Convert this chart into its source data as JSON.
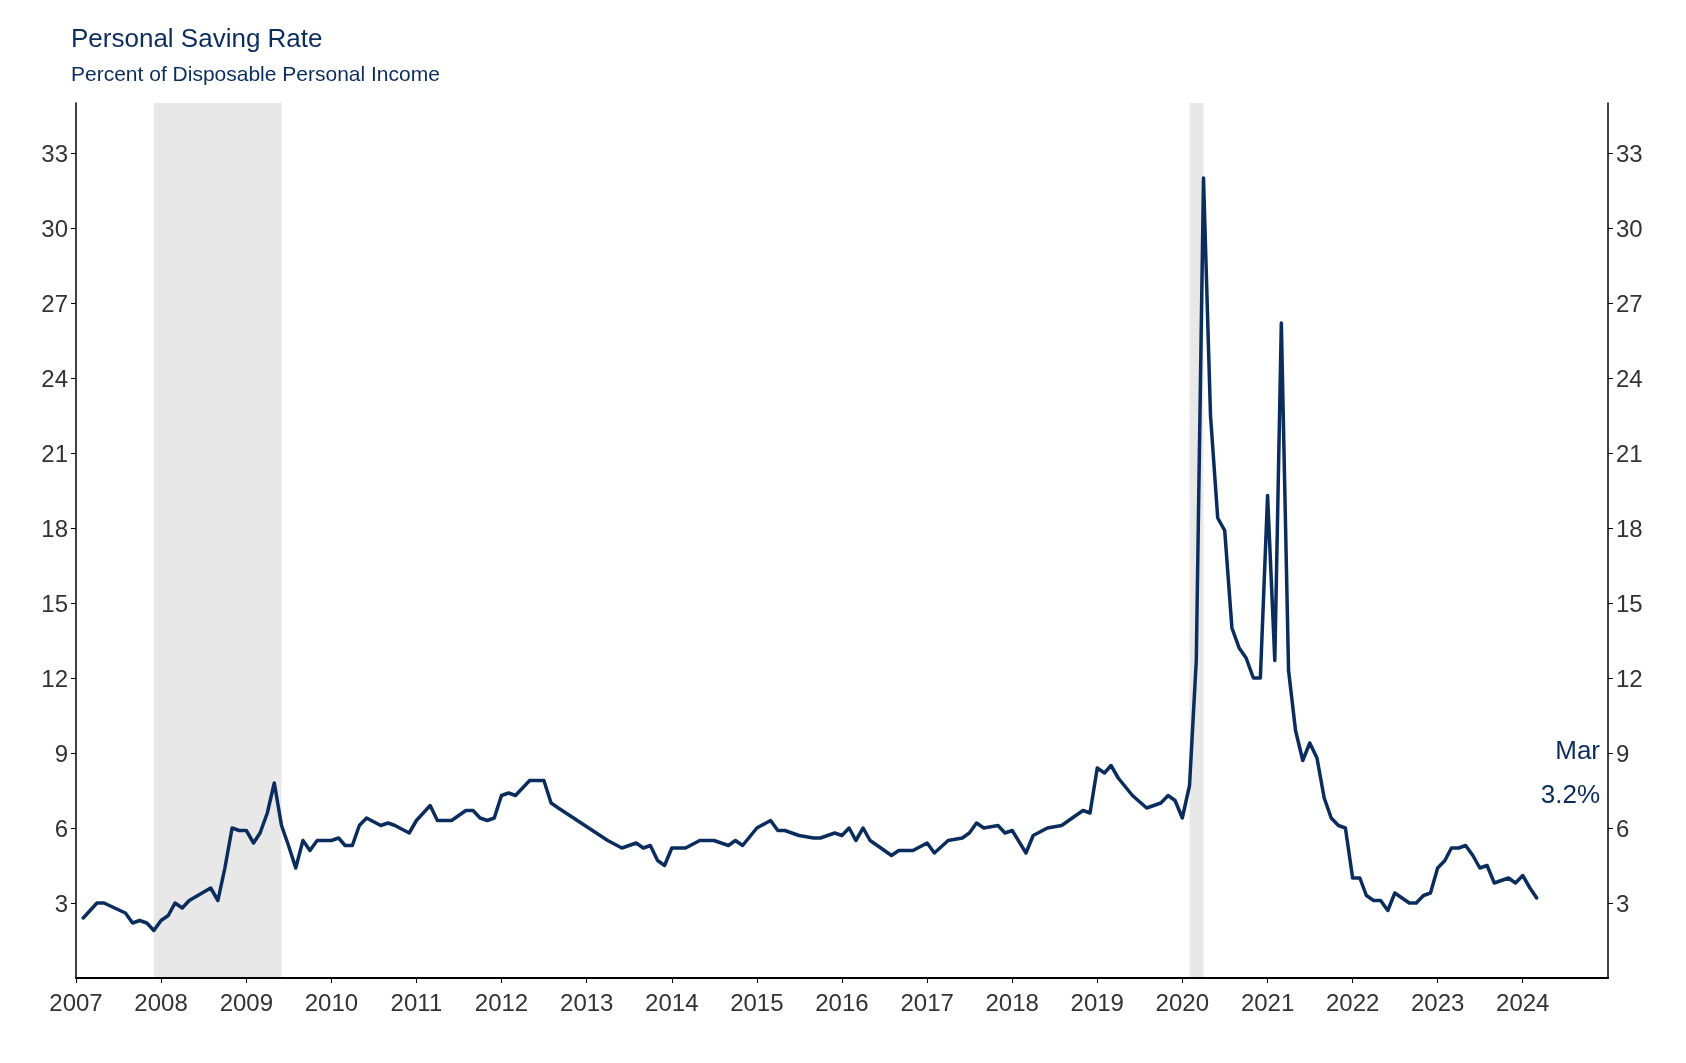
{
  "chart_data": {
    "type": "line",
    "title": "Personal Saving Rate",
    "subtitle": "Percent of Disposable Personal Income",
    "annotations": [
      "Mar",
      "3.2%"
    ],
    "x": [
      "2007-02",
      "2007-04",
      "2007-05",
      "2007-08",
      "2007-09",
      "2007-10",
      "2007-11",
      "2007-12",
      "2008-01",
      "2008-02",
      "2008-03",
      "2008-04",
      "2008-05",
      "2008-08",
      "2008-09",
      "2008-10",
      "2008-11",
      "2008-12",
      "2009-01",
      "2009-02",
      "2009-03",
      "2009-04",
      "2009-05",
      "2009-06",
      "2009-07",
      "2009-08",
      "2009-09",
      "2009-10",
      "2009-11",
      "2010-01",
      "2010-02",
      "2010-03",
      "2010-04",
      "2010-05",
      "2010-06",
      "2010-08",
      "2010-09",
      "2010-10",
      "2010-12",
      "2011-01",
      "2011-03",
      "2011-04",
      "2011-06",
      "2011-08",
      "2011-09",
      "2011-10",
      "2011-11",
      "2011-12",
      "2012-01",
      "2012-02",
      "2012-03",
      "2012-05",
      "2012-07",
      "2012-08",
      "2012-09",
      "2013-04",
      "2013-06",
      "2013-08",
      "2013-09",
      "2013-10",
      "2013-11",
      "2013-12",
      "2014-01",
      "2014-03",
      "2014-05",
      "2014-07",
      "2014-09",
      "2014-10",
      "2014-11",
      "2015-01",
      "2015-03",
      "2015-04",
      "2015-05",
      "2015-07",
      "2015-09",
      "2015-10",
      "2015-12",
      "2016-01",
      "2016-02",
      "2016-03",
      "2016-04",
      "2016-05",
      "2016-06",
      "2016-08",
      "2016-09",
      "2016-11",
      "2017-01",
      "2017-02",
      "2017-04",
      "2017-06",
      "2017-07",
      "2017-08",
      "2017-09",
      "2017-11",
      "2017-12",
      "2018-01",
      "2018-03",
      "2018-04",
      "2018-06",
      "2018-08",
      "2018-10",
      "2018-11",
      "2018-12",
      "2019-01",
      "2019-02",
      "2019-03",
      "2019-04",
      "2019-06",
      "2019-08",
      "2019-10",
      "2019-11",
      "2019-12",
      "2020-01",
      "2020-02",
      "2020-03",
      "2020-04",
      "2020-05",
      "2020-06",
      "2020-07",
      "2020-08",
      "2020-09",
      "2020-10",
      "2020-11",
      "2020-12",
      "2021-01",
      "2021-02",
      "2021-03",
      "2021-04",
      "2021-05",
      "2021-06",
      "2021-07",
      "2021-08",
      "2021-09",
      "2021-10",
      "2021-11",
      "2021-12",
      "2022-01",
      "2022-02",
      "2022-03",
      "2022-04",
      "2022-05",
      "2022-06",
      "2022-07",
      "2022-08",
      "2022-09",
      "2022-10",
      "2022-11",
      "2022-12",
      "2023-01",
      "2023-02",
      "2023-03",
      "2023-04",
      "2023-05",
      "2023-06",
      "2023-07",
      "2023-08",
      "2023-09",
      "2023-10",
      "2023-11",
      "2023-12",
      "2024-01",
      "2024-02",
      "2024-03"
    ],
    "series": [
      {
        "color": "#0b2d5e",
        "values": [
          2.4,
          3.0,
          3.0,
          2.6,
          2.2,
          2.3,
          2.2,
          1.9,
          2.3,
          2.5,
          3.0,
          2.8,
          3.1,
          3.6,
          3.1,
          4.4,
          6.0,
          5.9,
          5.9,
          5.4,
          5.8,
          6.6,
          7.8,
          6.1,
          5.3,
          4.4,
          5.5,
          5.1,
          5.5,
          5.5,
          5.6,
          5.3,
          5.3,
          6.1,
          6.4,
          6.1,
          6.2,
          6.1,
          5.8,
          6.3,
          6.9,
          6.3,
          6.3,
          6.7,
          6.7,
          6.4,
          6.3,
          6.4,
          7.3,
          7.4,
          7.3,
          7.9,
          7.9,
          7.0,
          6.8,
          5.5,
          5.2,
          5.4,
          5.2,
          5.3,
          4.7,
          4.5,
          5.2,
          5.2,
          5.5,
          5.5,
          5.3,
          5.5,
          5.3,
          6.0,
          6.3,
          5.9,
          5.9,
          5.7,
          5.6,
          5.6,
          5.8,
          5.7,
          6.0,
          5.5,
          6.0,
          5.5,
          5.3,
          4.9,
          5.1,
          5.1,
          5.4,
          5.0,
          5.5,
          5.6,
          5.8,
          6.2,
          6.0,
          6.1,
          5.8,
          5.9,
          5.0,
          5.7,
          6.0,
          6.1,
          6.5,
          6.7,
          6.6,
          8.4,
          8.2,
          8.5,
          8.0,
          7.3,
          6.8,
          7.0,
          7.3,
          7.1,
          6.4,
          7.7,
          12.7,
          32.0,
          22.5,
          18.4,
          17.9,
          14.0,
          13.2,
          12.8,
          12.0,
          12.0,
          19.3,
          12.7,
          26.2,
          12.3,
          9.9,
          8.7,
          9.4,
          8.8,
          7.2,
          6.4,
          6.1,
          6.0,
          4.0,
          4.0,
          3.3,
          3.1,
          3.1,
          2.7,
          3.4,
          3.2,
          3.0,
          3.0,
          3.3,
          3.4,
          4.4,
          4.7,
          5.2,
          5.2,
          5.3,
          4.9,
          4.4,
          4.5,
          3.8,
          3.9,
          4.0,
          3.8,
          4.1,
          3.6,
          3.2
        ]
      }
    ],
    "xlim": [
      "2007-01",
      "2025-01"
    ],
    "xticks": [
      "2007",
      "2008",
      "2009",
      "2010",
      "2011",
      "2012",
      "2013",
      "2014",
      "2015",
      "2016",
      "2017",
      "2018",
      "2019",
      "2020",
      "2021",
      "2022",
      "2023",
      "2024"
    ],
    "ylim": [
      0,
      35
    ],
    "yticks": [
      3,
      6,
      9,
      12,
      15,
      18,
      21,
      24,
      27,
      30,
      33
    ],
    "y2lim": [
      0,
      35
    ],
    "y2ticks": [
      3,
      6,
      9,
      12,
      15,
      18,
      21,
      24,
      27,
      30,
      33
    ],
    "bands": [
      {
        "axis": "x",
        "from": "2007-12",
        "to": "2009-06",
        "color": "#e8e8e8"
      },
      {
        "axis": "x",
        "from": "2020-02",
        "to": "2020-04",
        "color": "#e8e8e8"
      }
    ],
    "grid": false,
    "marker": "none",
    "line_style": "solid"
  }
}
